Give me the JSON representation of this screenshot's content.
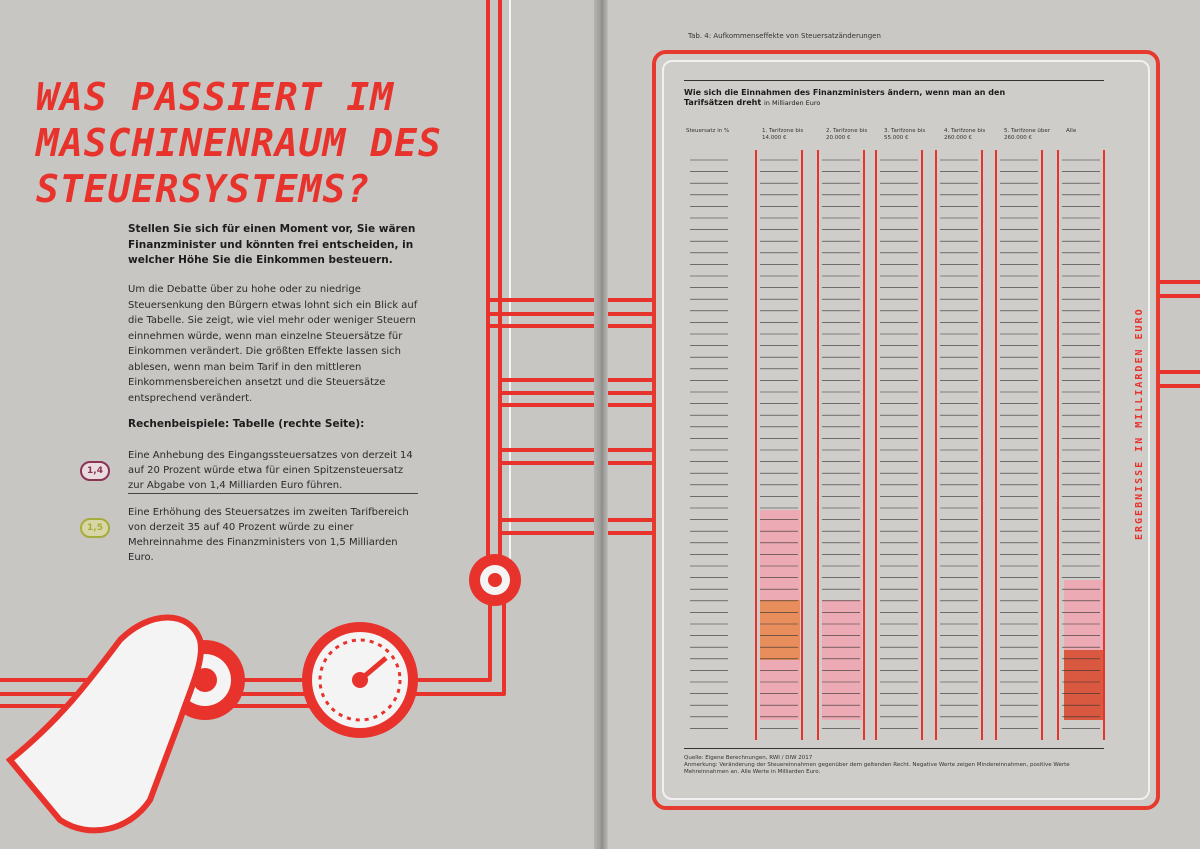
{
  "left_page": {
    "headline": "WAS PASSIERT IM MASCHINENRAUM DES STEUERSYSTEMS?",
    "intro": "Stellen Sie sich für einen Moment vor, Sie wären Finanzminister und könnten frei entscheiden, in welcher Höhe Sie die Einkommen besteuern.",
    "body": "Um die Debatte über zu hohe oder zu niedrige Steuersenkung den Bürgern etwas lohnt sich ein Blick auf die Tabelle. Sie zeigt, wie viel mehr oder weniger Steuern einnehmen würde, wenn man einzelne Steuersätze für Einkommen verändert. Die größten Effekte lassen sich ablesen, wenn man beim Tarif in den mittleren Einkommensbereichen ansetzt und die Steuersätze entsprechend verändert.",
    "calc_heading": "Rechenbeispiele: Tabelle (rechte Seite):",
    "example_1": "Eine Anhebung des Eingangssteuersatzes von derzeit 14 auf 20 Prozent würde etwa für einen Spitzensteuersatz zur Abgabe von 1,4 Milliarden Euro führen.",
    "example_2": "Eine Erhöhung des Steuersatzes im zweiten Tarifbereich von derzeit 35 auf 40 Prozent würde zu einer Mehreinnahme des Finanzministers von 1,5 Milliarden Euro.",
    "marker_1": "1,4",
    "marker_2": "1,5"
  },
  "right_page": {
    "caption_top": "Tab. 4: Aufkommenseffekte von Steuersatzänderungen",
    "table_title": "Wie sich die Einnahmen des Finanzministers ändern, wenn man an den Tarifsätzen dreht",
    "table_unit": "in Milliarden Euro",
    "side_label": "ERGEBNISSE IN MILLIARDEN EURO",
    "col_header_0": "Steuersatz in %",
    "col_headers": [
      "1. Tarifzone bis 14.000 €",
      "2. Tarifzone bis 20.000 €",
      "3. Tarifzone bis 55.000 €",
      "4. Tarifzone bis 260.000 €",
      "5. Tarifzone über 260.000 €",
      "Alle"
    ],
    "footnote_1": "Quelle: Eigene Berechnungen, RWI / DIW 2017",
    "footnote_2": "Anmerkung: Veränderung der Steuereinnahmen gegenüber dem geltenden Recht. Negative Werte zeigen Mindereinnahmen, positive Werte Mehreinnahmen an. Alle Werte in Milliarden Euro."
  },
  "colors": {
    "accent": "#e8332d",
    "pipe": "#e8332d",
    "highlight_pink": "#f3a9b5",
    "highlight_orange": "#e9874d"
  }
}
